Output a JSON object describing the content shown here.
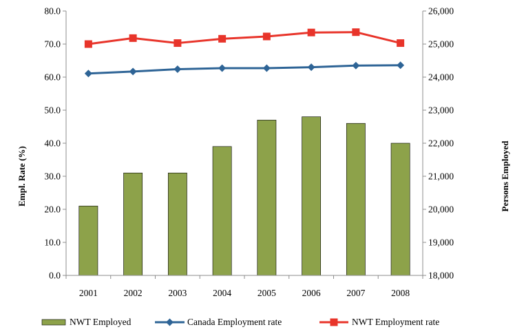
{
  "chart_data": {
    "type": "bar",
    "categories": [
      "2001",
      "2002",
      "2003",
      "2004",
      "2005",
      "2006",
      "2007",
      "2008"
    ],
    "series": [
      {
        "name": "NWT Employed",
        "type": "bar",
        "axis": "right",
        "color": "#8da24a",
        "values": [
          20100,
          21100,
          21100,
          21900,
          22700,
          22800,
          22600,
          22000
        ]
      },
      {
        "name": "Canada Employment rate",
        "type": "line",
        "axis": "left",
        "color": "#2e6496",
        "marker": "diamond",
        "values": [
          61.1,
          61.7,
          62.4,
          62.7,
          62.7,
          63.0,
          63.5,
          63.6
        ]
      },
      {
        "name": "NWT Employment rate",
        "type": "line",
        "axis": "left",
        "color": "#e8342a",
        "marker": "square",
        "values": [
          70.0,
          71.8,
          70.3,
          71.6,
          72.3,
          73.5,
          73.6,
          70.3
        ]
      }
    ],
    "ylabel": "Empl. Rate (%)",
    "y2label": "Persons Employed",
    "ylim": [
      0,
      80
    ],
    "y2lim": [
      18000,
      26000
    ],
    "yticks": [
      "0.0",
      "10.0",
      "20.0",
      "30.0",
      "40.0",
      "50.0",
      "60.0",
      "70.0",
      "80.0"
    ],
    "y2ticks": [
      "18,000",
      "19,000",
      "20,000",
      "21,000",
      "22,000",
      "23,000",
      "24,000",
      "25,000",
      "26,000"
    ],
    "grid": false,
    "legend_position": "bottom"
  }
}
